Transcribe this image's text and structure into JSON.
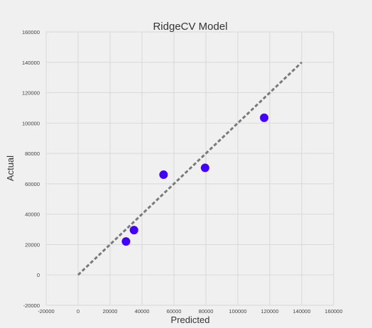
{
  "chart_data": {
    "type": "scatter",
    "title": "RidgeCV Model",
    "xlabel": "Predicted",
    "ylabel": "Actual",
    "xlim": [
      -20000,
      160000
    ],
    "ylim": [
      -20000,
      160000
    ],
    "x_ticks": [
      -20000,
      0,
      20000,
      40000,
      60000,
      80000,
      100000,
      120000,
      140000,
      160000
    ],
    "y_ticks": [
      -20000,
      0,
      20000,
      40000,
      60000,
      80000,
      100000,
      120000,
      140000,
      160000
    ],
    "x_tick_labels": [
      "-20000",
      "0",
      "20000",
      "40000",
      "60000",
      "80000",
      "100000",
      "120000",
      "140000",
      "160000"
    ],
    "y_tick_labels": [
      "-20000",
      "0",
      "20000",
      "40000",
      "60000",
      "80000",
      "100000",
      "120000",
      "140000",
      "160000"
    ],
    "grid": true,
    "series": [
      {
        "points": [
          {
            "x": 30000,
            "y": 22000
          },
          {
            "x": 35000,
            "y": 29500
          },
          {
            "x": 53500,
            "y": 66000
          },
          {
            "x": 79500,
            "y": 70500
          },
          {
            "x": 116500,
            "y": 103500
          }
        ],
        "color": "#4400ff"
      }
    ],
    "reference_line": {
      "from": [
        0,
        0
      ],
      "to": [
        140000,
        140000
      ],
      "style": "dashed",
      "color": "#7a7a7a"
    }
  }
}
